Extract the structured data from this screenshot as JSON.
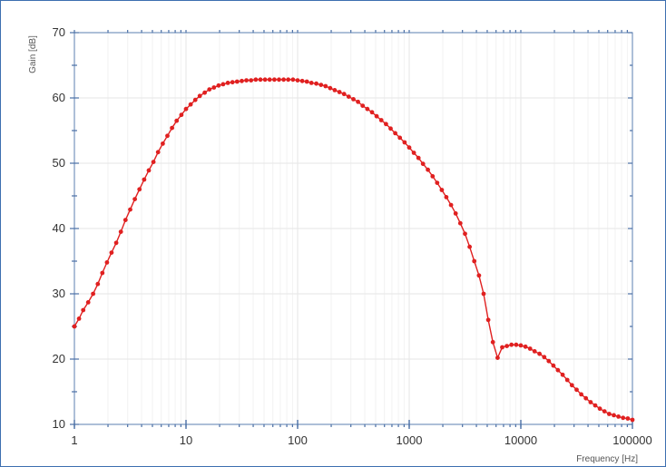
{
  "chart_data": {
    "type": "line",
    "title": "",
    "xlabel": "Frequency [Hz]",
    "ylabel": "Gain [dB]",
    "xscale": "log",
    "xlim": [
      1,
      100000
    ],
    "ylim": [
      10,
      70
    ],
    "x_ticks": [
      1,
      10,
      100,
      1000,
      10000,
      100000
    ],
    "x_tick_labels": [
      "1",
      "10",
      "100",
      "1000",
      "10000",
      "100000"
    ],
    "y_ticks": [
      10,
      20,
      30,
      40,
      50,
      60,
      70
    ],
    "y_tick_labels": [
      "10",
      "20",
      "30",
      "40",
      "50",
      "60",
      "70"
    ],
    "grid": true,
    "legend": "none",
    "series": [
      {
        "color": "#e02020",
        "marker": "circle",
        "x": [
          1,
          1.1,
          1.2,
          1.33,
          1.47,
          1.62,
          1.78,
          1.96,
          2.15,
          2.37,
          2.61,
          2.87,
          3.16,
          3.48,
          3.83,
          4.22,
          4.64,
          5.11,
          5.62,
          6.19,
          6.81,
          7.5,
          8.25,
          9.09,
          10,
          11,
          12.1,
          13.3,
          14.7,
          16.2,
          17.8,
          19.6,
          21.5,
          23.7,
          26.1,
          28.7,
          31.6,
          34.8,
          38.3,
          42.2,
          46.4,
          51.1,
          56.2,
          61.9,
          68.1,
          75,
          82.5,
          90.9,
          100,
          110,
          121,
          133,
          147,
          162,
          178,
          196,
          215,
          237,
          261,
          287,
          316,
          348,
          383,
          422,
          464,
          511,
          562,
          619,
          681,
          750,
          825,
          909,
          1000,
          1100,
          1210,
          1330,
          1470,
          1620,
          1780,
          1960,
          2150,
          2370,
          2610,
          2870,
          3160,
          3480,
          3830,
          4220,
          4640,
          5110,
          5620,
          6190,
          6810,
          7500,
          8250,
          9090,
          10000,
          11000,
          12100,
          13300,
          14700,
          16200,
          17800,
          19600,
          21500,
          23700,
          26100,
          28700,
          31600,
          34800,
          38300,
          42200,
          46400,
          51100,
          56200,
          61900,
          68100,
          75000,
          82500,
          90900,
          100000
        ],
        "y": [
          25,
          26.2,
          27.5,
          28.7,
          30.0,
          31.5,
          33.2,
          34.8,
          36.3,
          37.8,
          39.5,
          41.3,
          42.9,
          44.5,
          46.0,
          47.5,
          48.9,
          50.2,
          51.7,
          53.0,
          54.2,
          55.4,
          56.5,
          57.4,
          58.3,
          59.0,
          59.7,
          60.3,
          60.8,
          61.3,
          61.6,
          61.9,
          62.1,
          62.3,
          62.4,
          62.5,
          62.6,
          62.7,
          62.7,
          62.8,
          62.8,
          62.8,
          62.8,
          62.8,
          62.8,
          62.8,
          62.8,
          62.8,
          62.7,
          62.6,
          62.5,
          62.3,
          62.2,
          62.0,
          61.8,
          61.5,
          61.2,
          60.9,
          60.6,
          60.2,
          59.8,
          59.4,
          58.8,
          58.3,
          57.8,
          57.2,
          56.6,
          56.0,
          55.3,
          54.6,
          53.9,
          53.2,
          52.4,
          51.6,
          50.8,
          49.9,
          49.0,
          48.0,
          47.0,
          45.9,
          44.8,
          43.6,
          42.3,
          40.8,
          39.2,
          37.2,
          35.0,
          32.8,
          30.0,
          26.0,
          22.6,
          20.2,
          21.8,
          22.0,
          22.2,
          22.2,
          22.1,
          21.9,
          21.6,
          21.2,
          20.8,
          20.3,
          19.7,
          19.0,
          18.3,
          17.6,
          16.8,
          16.0,
          15.3,
          14.6,
          14.0,
          13.4,
          12.9,
          12.4,
          12.0,
          11.6,
          11.4,
          11.2,
          11.0,
          10.9,
          10.7
        ]
      }
    ]
  }
}
